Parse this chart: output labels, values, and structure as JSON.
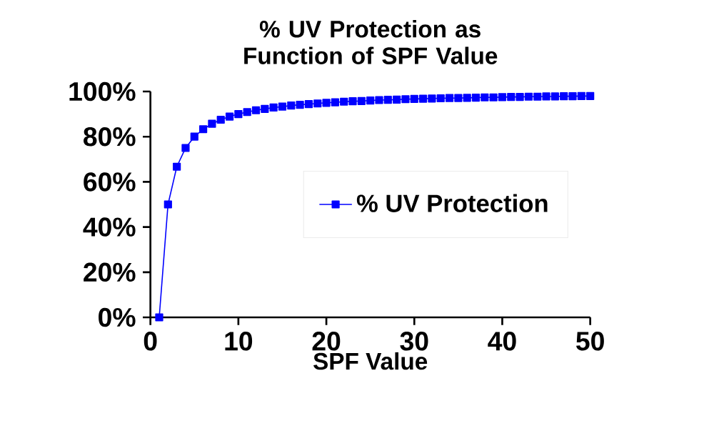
{
  "chart_data": {
    "type": "line",
    "title": "% UV Protection as Function of SPF Value",
    "xlabel": "SPF Value",
    "x": [
      1,
      2,
      3,
      4,
      5,
      6,
      7,
      8,
      9,
      10,
      11,
      12,
      13,
      14,
      15,
      16,
      17,
      18,
      19,
      20,
      21,
      22,
      23,
      24,
      25,
      26,
      27,
      28,
      29,
      30,
      31,
      32,
      33,
      34,
      35,
      36,
      37,
      38,
      39,
      40,
      41,
      42,
      43,
      44,
      45,
      46,
      47,
      48,
      49,
      50
    ],
    "series": [
      {
        "name": "% UV Protection",
        "color": "#0000ff",
        "values": [
          0,
          50,
          66.7,
          75,
          80,
          83.3,
          85.7,
          87.5,
          88.9,
          90,
          90.9,
          91.7,
          92.3,
          92.9,
          93.3,
          93.8,
          94.1,
          94.4,
          94.7,
          95,
          95.2,
          95.5,
          95.7,
          95.8,
          96,
          96.2,
          96.3,
          96.4,
          96.6,
          96.7,
          96.8,
          96.9,
          97,
          97.1,
          97.1,
          97.2,
          97.3,
          97.4,
          97.4,
          97.5,
          97.6,
          97.6,
          97.7,
          97.7,
          97.8,
          97.8,
          97.9,
          97.9,
          98,
          98
        ]
      }
    ],
    "xlim": [
      0,
      50
    ],
    "xticks": [
      0,
      10,
      20,
      30,
      40,
      50
    ],
    "ylim": [
      0,
      100
    ],
    "yticks": [
      {
        "value": 0,
        "label": "0%"
      },
      {
        "value": 20,
        "label": "20%"
      },
      {
        "value": 40,
        "label": "40%"
      },
      {
        "value": 60,
        "label": "60%"
      },
      {
        "value": 80,
        "label": "80%"
      },
      {
        "value": 100,
        "label": "100%"
      }
    ],
    "legend": "right",
    "marker": "square",
    "line_style": "solid",
    "grid": false
  }
}
